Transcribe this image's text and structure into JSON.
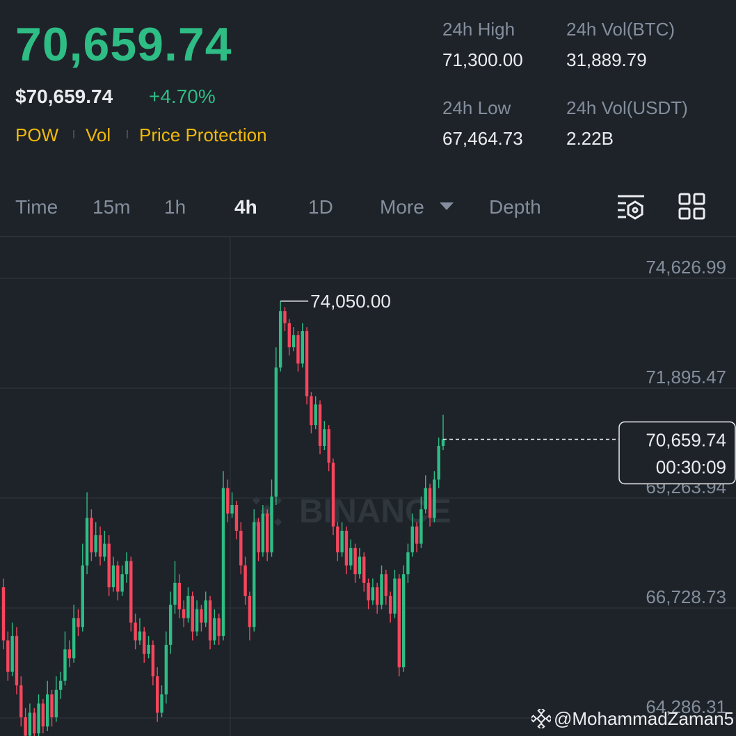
{
  "header": {
    "price": "70,659.74",
    "usd_price": "$70,659.74",
    "change": "+4.70%",
    "tags": [
      "POW",
      "Vol",
      "Price Protection"
    ]
  },
  "stats": [
    {
      "label": "24h High",
      "value": "71,300.00"
    },
    {
      "label": "24h Vol(BTC)",
      "value": "31,889.79"
    },
    {
      "label": "24h Low",
      "value": "67,464.73"
    },
    {
      "label": "24h Vol(USDT)",
      "value": "2.22B"
    }
  ],
  "tabs": [
    "Time",
    "15m",
    "1h",
    "4h",
    "1D",
    "More",
    "Depth"
  ],
  "active_tab": "4h",
  "chart_data": {
    "type": "candlestick",
    "log_scale": true,
    "grid": true,
    "up_color": "#2ebd85",
    "down_color": "#f6465d",
    "ylim": [
      63893,
      75691
    ],
    "yticks": [
      {
        "value": 64286.31,
        "label": "64,286.31"
      },
      {
        "value": 66728.73,
        "label": "66,728.73"
      },
      {
        "value": 69263.94,
        "label": "69,263.94"
      },
      {
        "value": 71895.47,
        "label": "71,895.47"
      },
      {
        "value": 74626.99,
        "label": "74,626.99"
      }
    ],
    "open": [
      67200,
      66000,
      65300,
      66100,
      65000,
      64300,
      63900,
      64400,
      63950,
      64600,
      64100,
      64800,
      64300,
      64900,
      65100,
      65800,
      65600,
      66500,
      66300,
      67700,
      68800,
      68000,
      68400,
      67900,
      68200,
      67200,
      67700,
      67100,
      67500,
      67800,
      66400,
      66000,
      66200,
      65700,
      65900,
      65200,
      64400,
      64800,
      65900,
      66800,
      67300,
      66700,
      66500,
      67000,
      66200,
      66700,
      66400,
      66900,
      66000,
      66500,
      66100,
      69500,
      68900,
      69100,
      68500,
      67700,
      67000,
      66300,
      68700,
      68000,
      68900,
      68000,
      69300,
      72400,
      73800,
      73500,
      72900,
      73200,
      72500,
      73300,
      71700,
      71000,
      71500,
      70500,
      70900,
      70100,
      68600,
      68000,
      68500,
      67700,
      68100,
      67500,
      67900,
      67300,
      66900,
      67200,
      66800,
      67500,
      67000,
      66600,
      67400,
      65400,
      67500,
      68000,
      68600,
      68200,
      69000,
      69500,
      68800,
      69700,
      70500
    ],
    "high": [
      67400,
      66200,
      66400,
      66300,
      65200,
      64500,
      64600,
      64500,
      64800,
      64700,
      65100,
      64900,
      65200,
      65300,
      66200,
      66000,
      66800,
      66700,
      68200,
      69400,
      69000,
      68700,
      68600,
      68500,
      68400,
      67900,
      67800,
      67700,
      68000,
      67900,
      66600,
      66500,
      66300,
      66100,
      66000,
      65400,
      65000,
      66200,
      67100,
      67800,
      67500,
      66900,
      67200,
      67100,
      66900,
      66800,
      67100,
      67000,
      66700,
      66600,
      69900,
      69700,
      69400,
      69200,
      68700,
      67900,
      67100,
      69000,
      68800,
      69100,
      69000,
      69700,
      72900,
      74050,
      73900,
      73600,
      73400,
      73300,
      73500,
      73400,
      71800,
      71700,
      71600,
      71100,
      71000,
      70200,
      68700,
      68700,
      68600,
      68300,
      68200,
      68100,
      68000,
      67400,
      67400,
      67300,
      67700,
      67600,
      67100,
      67600,
      67500,
      67700,
      68200,
      68900,
      68700,
      69300,
      69800,
      69600,
      69900,
      70700,
      71250
    ],
    "low": [
      65800,
      65100,
      65200,
      64800,
      64100,
      63800,
      63800,
      63850,
      63800,
      63950,
      64000,
      64100,
      64200,
      64700,
      65000,
      65400,
      65500,
      66100,
      66200,
      67500,
      67800,
      67900,
      67700,
      67800,
      67000,
      67100,
      66900,
      67000,
      67300,
      66200,
      65800,
      65900,
      65500,
      65600,
      65000,
      64200,
      64300,
      64600,
      65700,
      66600,
      66500,
      66300,
      66400,
      66000,
      66100,
      66200,
      66300,
      65800,
      65900,
      65900,
      66000,
      68700,
      68800,
      68300,
      67500,
      66800,
      66000,
      66200,
      67800,
      67900,
      67800,
      67900,
      69100,
      72300,
      73300,
      72700,
      72800,
      72300,
      72400,
      71500,
      70800,
      70900,
      70300,
      70400,
      69900,
      68400,
      67800,
      67900,
      67500,
      67600,
      67300,
      67400,
      67100,
      66700,
      66800,
      66600,
      66700,
      66800,
      66400,
      66500,
      65200,
      65300,
      67300,
      67900,
      68000,
      68100,
      68900,
      68600,
      68700,
      69500,
      70400
    ],
    "close": [
      66000,
      65300,
      66100,
      65000,
      64300,
      63900,
      64400,
      63950,
      64600,
      64100,
      64800,
      64300,
      64900,
      65100,
      65800,
      65600,
      66500,
      66300,
      67700,
      68800,
      68000,
      68400,
      67900,
      68200,
      67200,
      67700,
      67100,
      67500,
      67800,
      66400,
      66000,
      66200,
      65700,
      65900,
      65200,
      64400,
      64800,
      65900,
      66800,
      67300,
      66700,
      66500,
      67000,
      66200,
      66700,
      66400,
      66900,
      66000,
      66500,
      66100,
      69500,
      68900,
      69100,
      68500,
      67700,
      67000,
      66300,
      68700,
      68000,
      68900,
      68000,
      69300,
      72400,
      73800,
      73500,
      72900,
      73200,
      72500,
      73300,
      71700,
      71000,
      71500,
      70500,
      70900,
      70100,
      68600,
      68000,
      68500,
      67700,
      68100,
      67500,
      67900,
      67300,
      66900,
      67200,
      66800,
      67500,
      67000,
      66600,
      67400,
      65400,
      67500,
      68000,
      68600,
      68200,
      69000,
      69500,
      68800,
      69700,
      70500,
      70659.74
    ],
    "high_marker": {
      "value": 74050,
      "label": "74,050.00"
    },
    "last_price": {
      "value": 70659.74,
      "label": "70,659.74"
    },
    "countdown": "00:30:09"
  },
  "watermark": "BINANCE",
  "footer": "@MohammadZaman5"
}
